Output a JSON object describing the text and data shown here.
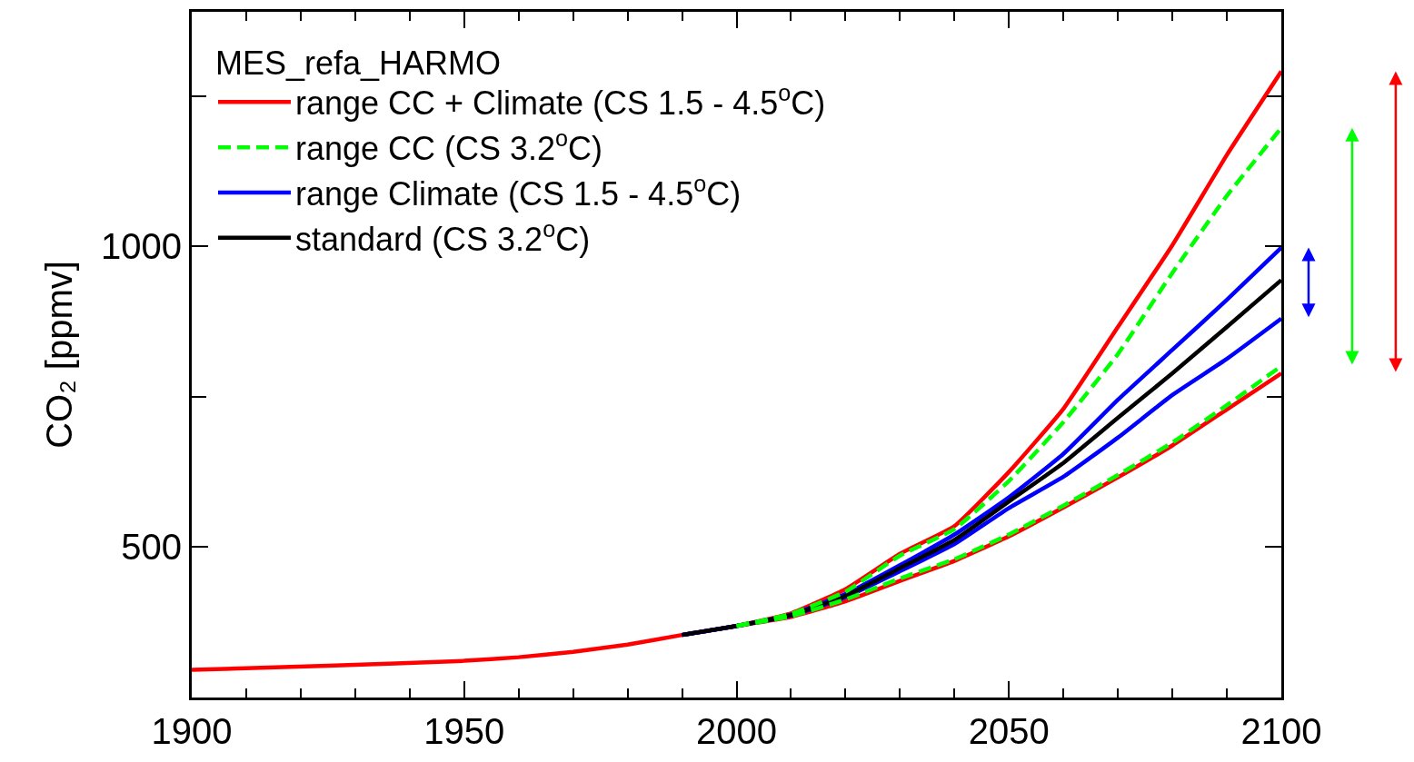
{
  "chart_data": {
    "type": "line",
    "ylabel": "CO₂ [ppmv]",
    "legend_title": "MES_refa_HARMO",
    "legend": "top left",
    "marker": "none",
    "xlim": [
      1900,
      2100
    ],
    "xticks": [
      1900,
      {
        "value": 1910,
        "label": null
      },
      {
        "value": 1920,
        "label": null
      },
      {
        "value": 1930,
        "label": null
      },
      {
        "value": 1940,
        "label": null
      },
      1950,
      {
        "value": 1960,
        "label": null
      },
      {
        "value": 1970,
        "label": null
      },
      {
        "value": 1980,
        "label": null
      },
      {
        "value": 1990,
        "label": null
      },
      2000,
      {
        "value": 2010,
        "label": null
      },
      {
        "value": 2020,
        "label": null
      },
      {
        "value": 2030,
        "label": null
      },
      {
        "value": 2040,
        "label": null
      },
      2050,
      {
        "value": 2060,
        "label": null
      },
      {
        "value": 2070,
        "label": null
      },
      {
        "value": 2080,
        "label": null
      },
      {
        "value": 2090,
        "label": null
      },
      2100
    ],
    "ylim": [
      250,
      1390
    ],
    "yticks": [
      500,
      {
        "value": 750,
        "label": null
      },
      1000,
      {
        "value": 1250,
        "label": null
      }
    ],
    "x": [
      1900,
      1925,
      1950,
      1960,
      1970,
      1980,
      1990,
      2000,
      2010,
      2020,
      2030,
      2040,
      2050,
      2060,
      2070,
      2080,
      2090,
      2100
    ],
    "series": [
      {
        "name": "range CC + Climate (CS 1.5 - 4.5$^{o}$C)",
        "color": "#ff0000",
        "line_style": "solid",
        "values": [
          296,
          303,
          311,
          317,
          326,
          338,
          354,
          369,
          390,
          430,
          489,
          535,
          625,
          730,
          866,
          1002,
          1152,
          1291
        ]
      },
      {
        "color": "#ff0000",
        "line_style": "solid",
        "values": [
          null,
          null,
          null,
          null,
          null,
          null,
          354,
          369,
          384,
          410,
          444,
          477,
          518,
          566,
          616,
          669,
          729,
          789
        ]
      },
      {
        "name": "range CC (CS 3.2$^{o}$C)",
        "color": "#00ff00",
        "line_style": "dashed",
        "values": [
          null,
          null,
          null,
          null,
          null,
          null,
          null,
          369,
          389,
          426,
          486,
          530,
          610,
          708,
          821,
          956,
          1084,
          1197
        ]
      },
      {
        "color": "#00ff00",
        "line_style": "dashed",
        "values": [
          null,
          null,
          null,
          null,
          null,
          null,
          null,
          369,
          385,
          413,
          448,
          480,
          521,
          569,
          620,
          674,
          736,
          801
        ]
      },
      {
        "name": "range Climate (CS 1.5 - 4.5$^{o}$C)",
        "color": "#0000ff",
        "line_style": "solid",
        "values": [
          null,
          null,
          null,
          null,
          null,
          null,
          354,
          369,
          388,
          422,
          470,
          521,
          583,
          655,
          745,
          828,
          911,
          998
        ]
      },
      {
        "color": "#0000ff",
        "line_style": "solid",
        "values": [
          null,
          null,
          null,
          null,
          null,
          null,
          354,
          369,
          386,
          417,
          460,
          505,
          565,
          617,
          682,
          753,
          813,
          880
        ]
      },
      {
        "name": "standard (CS 3.2$^{o}$C)",
        "color": "#000000",
        "line_style": "solid",
        "values": [
          null,
          null,
          null,
          null,
          null,
          null,
          354,
          369,
          387,
          419,
          465,
          512,
          576,
          640,
          715,
          789,
          866,
          944
        ]
      }
    ]
  }
}
